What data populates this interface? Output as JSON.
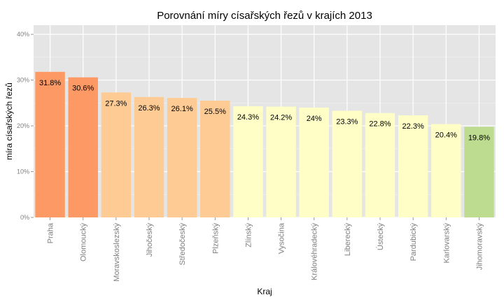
{
  "chart_data": {
    "type": "bar",
    "title": "Porovnání míry císařských řezů v krajích 2013",
    "xlabel": "Kraj",
    "ylabel": "míra císařských řezů",
    "ylim": [
      0,
      42
    ],
    "yticks": [
      0,
      10,
      20,
      30,
      40
    ],
    "ytick_labels": [
      "0%",
      "10%",
      "20%",
      "30%",
      "40%"
    ],
    "grid": true,
    "categories": [
      "Praha",
      "Olomoucký",
      "Moravskoslezský",
      "Jihočeský",
      "Středočeský",
      "Plzeňský",
      "Zlínský",
      "Vysočina",
      "Královéhradecký",
      "Liberecký",
      "Ústecký",
      "Pardubický",
      "Karlovarský",
      "Jihomoravský"
    ],
    "values": [
      31.8,
      30.6,
      27.3,
      26.3,
      26.1,
      25.5,
      24.3,
      24.2,
      24.0,
      23.3,
      22.8,
      22.3,
      20.4,
      19.8
    ],
    "value_labels": [
      "31.8%",
      "30.6%",
      "27.3%",
      "26.3%",
      "26.1%",
      "25.5%",
      "24.3%",
      "24.2%",
      "24%",
      "23.3%",
      "22.8%",
      "22.3%",
      "20.4%",
      "19.8%"
    ],
    "colors": [
      "#fc9965",
      "#fc9965",
      "#fecb94",
      "#fecb94",
      "#fecb94",
      "#fecb94",
      "#fefec6",
      "#fefec6",
      "#fefec6",
      "#fefec6",
      "#fefec6",
      "#fefec6",
      "#fefec6",
      "#bddc8f"
    ],
    "panel_color": "#e5e5e5",
    "grid_color": "#ffffff",
    "legend": "none"
  }
}
